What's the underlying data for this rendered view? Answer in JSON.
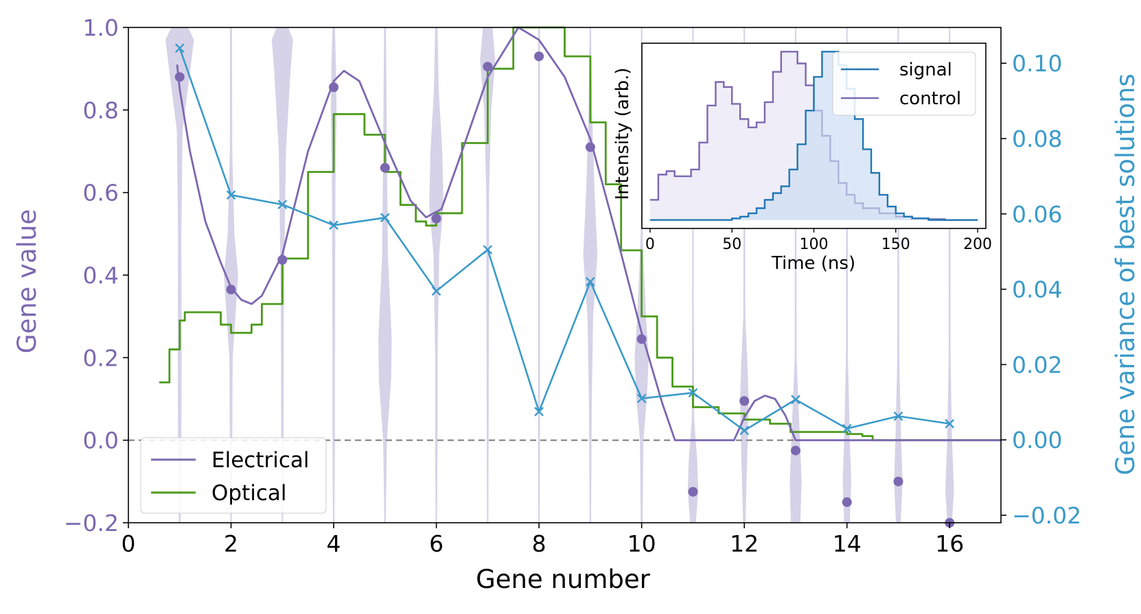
{
  "chart_data": [
    {
      "type": "line",
      "x_label": "Gene number",
      "y_label": "Gene value",
      "y2_label": "Gene variance of best solutions",
      "xlim": [
        0,
        17
      ],
      "ylim": [
        -0.2,
        1.0
      ],
      "y2lim": [
        -0.022,
        0.1095
      ],
      "x_ticks": [
        "0",
        "2",
        "4",
        "6",
        "8",
        "10",
        "12",
        "14",
        "16"
      ],
      "y_ticks": [
        "−0.2",
        "0.0",
        "0.2",
        "0.4",
        "0.6",
        "0.8",
        "1.0"
      ],
      "y2_ticks": [
        "−0.02",
        "0.00",
        "0.02",
        "0.04",
        "0.06",
        "0.08",
        "0.10"
      ],
      "legend": [
        "Electrical",
        "Optical"
      ],
      "colors": {
        "electrical": "#7b68b0",
        "optical": "#4c9a1b",
        "variance": "#3a9ac9",
        "violin": "#d6d2e8",
        "zero_line": "#808080",
        "left_axis_text": "#7b68b0",
        "right_axis_text": "#3a9ac9"
      },
      "gene_values": {
        "x": [
          1,
          2,
          3,
          4,
          5,
          6,
          7,
          8,
          9,
          10,
          11,
          12,
          13,
          14,
          15,
          16
        ],
        "y": [
          0.88,
          0.365,
          0.437,
          0.855,
          0.66,
          0.537,
          0.905,
          0.93,
          0.71,
          0.245,
          -0.125,
          0.095,
          -0.025,
          -0.15,
          -0.1,
          -0.2
        ]
      },
      "variance": {
        "x": [
          1,
          2,
          3,
          4,
          5,
          6,
          7,
          8,
          9,
          10,
          11,
          12,
          13,
          14,
          15,
          16
        ],
        "y": [
          0.104,
          0.065,
          0.0625,
          0.057,
          0.059,
          0.0395,
          0.0505,
          0.0075,
          0.042,
          0.011,
          0.0125,
          0.0025,
          0.0107,
          0.003,
          0.0063,
          0.0043
        ]
      },
      "electrical": {
        "x": [
          0.95,
          1.0,
          1.2,
          1.5,
          1.8,
          2.0,
          2.2,
          2.4,
          2.6,
          3.0,
          3.5,
          4.0,
          4.2,
          4.5,
          5.0,
          5.5,
          5.8,
          6.1,
          6.5,
          7.0,
          7.6,
          8.0,
          8.5,
          9.0,
          9.5,
          10.0,
          10.4,
          10.65,
          11.8,
          12.0,
          12.2,
          12.4,
          12.6,
          12.8,
          13.0,
          17.0
        ],
        "y": [
          0.91,
          0.85,
          0.7,
          0.53,
          0.43,
          0.37,
          0.34,
          0.33,
          0.35,
          0.45,
          0.7,
          0.87,
          0.895,
          0.87,
          0.72,
          0.58,
          0.54,
          0.56,
          0.7,
          0.88,
          1.0,
          0.97,
          0.88,
          0.73,
          0.5,
          0.26,
          0.09,
          0.0,
          0.0,
          0.055,
          0.095,
          0.108,
          0.1,
          0.06,
          0.0,
          0.0
        ]
      },
      "optical": {
        "x": [
          0.6,
          0.8,
          1.0,
          1.1,
          1.5,
          1.8,
          2.0,
          2.2,
          2.4,
          2.6,
          3.0,
          3.5,
          4.0,
          4.3,
          4.6,
          5.0,
          5.3,
          5.6,
          5.8,
          6.0,
          6.5,
          7.0,
          7.5,
          8.0,
          8.5,
          9.0,
          9.3,
          9.6,
          10.0,
          10.3,
          10.6,
          11.0,
          11.5,
          12.0,
          12.5,
          12.9,
          13.5,
          14.0,
          14.3,
          14.5,
          17.0
        ],
        "y": [
          0.14,
          0.22,
          0.29,
          0.31,
          0.31,
          0.28,
          0.26,
          0.26,
          0.28,
          0.33,
          0.44,
          0.65,
          0.79,
          0.79,
          0.74,
          0.65,
          0.57,
          0.53,
          0.52,
          0.55,
          0.72,
          0.9,
          1.0,
          1.0,
          0.93,
          0.77,
          0.62,
          0.46,
          0.3,
          0.2,
          0.13,
          0.08,
          0.065,
          0.05,
          0.04,
          0.02,
          0.02,
          0.015,
          0.01,
          0.0,
          0.0
        ]
      },
      "violins": [
        {
          "x": 1,
          "lo": -0.2,
          "hi": 1.0,
          "shape": [
            [
              1.0,
              0.35
            ],
            [
              0.97,
              0.6
            ],
            [
              0.9,
              0.45
            ],
            [
              0.75,
              0.12
            ],
            [
              0.5,
              0.07
            ],
            [
              0.2,
              0.08
            ],
            [
              0.0,
              0.07
            ],
            [
              -0.2,
              0.04
            ]
          ]
        },
        {
          "x": 2,
          "lo": -0.2,
          "hi": 1.0,
          "shape": [
            [
              1.0,
              0.04
            ],
            [
              0.7,
              0.05
            ],
            [
              0.5,
              0.14
            ],
            [
              0.4,
              0.3
            ],
            [
              0.33,
              0.22
            ],
            [
              0.2,
              0.07
            ],
            [
              0.0,
              0.05
            ],
            [
              -0.2,
              0.03
            ]
          ]
        },
        {
          "x": 3,
          "lo": -0.2,
          "hi": 1.0,
          "shape": [
            [
              1.0,
              0.25
            ],
            [
              0.97,
              0.45
            ],
            [
              0.9,
              0.35
            ],
            [
              0.7,
              0.15
            ],
            [
              0.5,
              0.1
            ],
            [
              0.3,
              0.06
            ],
            [
              0.0,
              0.05
            ],
            [
              -0.2,
              0.03
            ]
          ]
        },
        {
          "x": 4,
          "lo": -0.2,
          "hi": 1.0,
          "shape": [
            [
              1.0,
              0.05
            ],
            [
              0.9,
              0.1
            ],
            [
              0.8,
              0.12
            ],
            [
              0.6,
              0.07
            ],
            [
              0.4,
              0.06
            ],
            [
              0.2,
              0.05
            ],
            [
              0.0,
              0.05
            ],
            [
              -0.2,
              0.03
            ]
          ]
        },
        {
          "x": 5,
          "lo": -0.2,
          "hi": 1.0,
          "shape": [
            [
              1.0,
              0.04
            ],
            [
              0.7,
              0.08
            ],
            [
              0.45,
              0.12
            ],
            [
              0.25,
              0.28
            ],
            [
              0.15,
              0.26
            ],
            [
              0.0,
              0.08
            ],
            [
              -0.2,
              0.03
            ]
          ]
        },
        {
          "x": 6,
          "lo": -0.2,
          "hi": 1.0,
          "shape": [
            [
              1.0,
              0.05
            ],
            [
              0.85,
              0.1
            ],
            [
              0.7,
              0.25
            ],
            [
              0.57,
              0.3
            ],
            [
              0.45,
              0.12
            ],
            [
              0.2,
              0.05
            ],
            [
              0.0,
              0.05
            ],
            [
              -0.2,
              0.03
            ]
          ]
        },
        {
          "x": 7,
          "lo": -0.2,
          "hi": 1.0,
          "shape": [
            [
              1.0,
              0.2
            ],
            [
              0.92,
              0.32
            ],
            [
              0.8,
              0.15
            ],
            [
              0.6,
              0.06
            ],
            [
              0.3,
              0.05
            ],
            [
              0.0,
              0.04
            ],
            [
              -0.2,
              0.03
            ]
          ]
        },
        {
          "x": 8,
          "lo": -0.2,
          "hi": 1.0,
          "shape": [
            [
              1.0,
              0.04
            ],
            [
              0.8,
              0.04
            ],
            [
              0.5,
              0.04
            ],
            [
              0.2,
              0.04
            ],
            [
              0.0,
              0.04
            ],
            [
              -0.2,
              0.03
            ]
          ]
        },
        {
          "x": 9,
          "lo": -0.2,
          "hi": 1.0,
          "shape": [
            [
              1.0,
              0.03
            ],
            [
              0.8,
              0.07
            ],
            [
              0.6,
              0.18
            ],
            [
              0.45,
              0.3
            ],
            [
              0.3,
              0.12
            ],
            [
              0.1,
              0.06
            ],
            [
              -0.2,
              0.03
            ]
          ]
        },
        {
          "x": 10,
          "lo": -0.2,
          "hi": 1.0,
          "shape": [
            [
              1.0,
              0.03
            ],
            [
              0.5,
              0.04
            ],
            [
              0.3,
              0.18
            ],
            [
              0.2,
              0.3
            ],
            [
              0.1,
              0.22
            ],
            [
              0.0,
              0.07
            ],
            [
              -0.2,
              0.04
            ]
          ]
        },
        {
          "x": 11,
          "lo": -0.2,
          "hi": 1.0,
          "shape": [
            [
              1.0,
              0.03
            ],
            [
              0.4,
              0.03
            ],
            [
              0.05,
              0.05
            ],
            [
              -0.05,
              0.18
            ],
            [
              -0.12,
              0.22
            ],
            [
              -0.2,
              0.12
            ]
          ]
        },
        {
          "x": 12,
          "lo": -0.2,
          "hi": 1.0,
          "shape": [
            [
              1.0,
              0.03
            ],
            [
              0.3,
              0.04
            ],
            [
              0.2,
              0.12
            ],
            [
              0.1,
              0.18
            ],
            [
              0.0,
              0.14
            ],
            [
              -0.2,
              0.05
            ]
          ]
        },
        {
          "x": 13,
          "lo": -0.2,
          "hi": 1.0,
          "shape": [
            [
              1.0,
              0.03
            ],
            [
              0.2,
              0.04
            ],
            [
              0.0,
              0.18
            ],
            [
              -0.1,
              0.25
            ],
            [
              -0.2,
              0.2
            ]
          ]
        },
        {
          "x": 14,
          "lo": -0.2,
          "hi": 1.0,
          "shape": [
            [
              1.0,
              0.03
            ],
            [
              0.2,
              0.04
            ],
            [
              0.0,
              0.12
            ],
            [
              -0.1,
              0.18
            ],
            [
              -0.2,
              0.12
            ]
          ]
        },
        {
          "x": 15,
          "lo": -0.2,
          "hi": 1.0,
          "shape": [
            [
              1.0,
              0.03
            ],
            [
              0.2,
              0.04
            ],
            [
              0.0,
              0.12
            ],
            [
              -0.1,
              0.18
            ],
            [
              -0.2,
              0.1
            ]
          ]
        },
        {
          "x": 16,
          "lo": -0.2,
          "hi": 1.0,
          "shape": [
            [
              1.0,
              0.03
            ],
            [
              0.2,
              0.04
            ],
            [
              0.0,
              0.1
            ],
            [
              -0.12,
              0.18
            ],
            [
              -0.2,
              0.1
            ]
          ]
        }
      ]
    },
    {
      "type": "area",
      "x_label": "Time (ns)",
      "y_label": "Intensity (arb.)",
      "xlim": [
        -5,
        205
      ],
      "ylim": [
        -0.05,
        1.05
      ],
      "x_ticks": [
        "0",
        "50",
        "100",
        "150",
        "200"
      ],
      "legend": [
        "signal",
        "control"
      ],
      "colors": {
        "signal": "#1f77b4",
        "control": "#7b68b0",
        "signal_fill": "#c9dcf2",
        "control_fill": "#e6e3f2"
      },
      "control": {
        "x": [
          0,
          5,
          10,
          15,
          20,
          25,
          30,
          35,
          40,
          45,
          50,
          55,
          60,
          65,
          70,
          75,
          80,
          85,
          90,
          95,
          100,
          105,
          110,
          115,
          120,
          125,
          130,
          140,
          150,
          160,
          170,
          180,
          190,
          200
        ],
        "y": [
          0.12,
          0.27,
          0.29,
          0.26,
          0.26,
          0.3,
          0.46,
          0.68,
          0.82,
          0.79,
          0.69,
          0.6,
          0.55,
          0.58,
          0.7,
          0.88,
          1.0,
          1.0,
          0.93,
          0.8,
          0.65,
          0.5,
          0.35,
          0.22,
          0.15,
          0.1,
          0.07,
          0.04,
          0.02,
          0.01,
          0.005,
          0.0,
          0.0,
          0.0
        ]
      },
      "signal": {
        "x": [
          0,
          20,
          40,
          50,
          55,
          60,
          65,
          70,
          75,
          80,
          85,
          90,
          95,
          100,
          105,
          110,
          115,
          120,
          125,
          130,
          135,
          140,
          145,
          150,
          155,
          160,
          170,
          180,
          190,
          200
        ],
        "y": [
          0.0,
          0.0,
          0.0,
          0.01,
          0.02,
          0.04,
          0.07,
          0.12,
          0.16,
          0.2,
          0.3,
          0.45,
          0.65,
          0.85,
          1.0,
          1.0,
          0.92,
          0.78,
          0.6,
          0.42,
          0.28,
          0.15,
          0.08,
          0.04,
          0.02,
          0.01,
          0.0,
          0.0,
          0.0,
          0.0
        ]
      }
    }
  ]
}
